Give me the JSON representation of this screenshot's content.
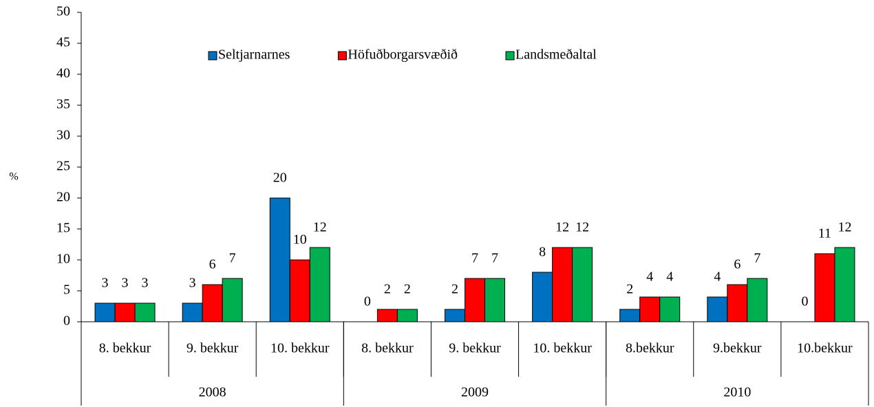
{
  "chart_data": {
    "type": "bar",
    "y_label": "%",
    "categories": [
      "8. bekkur",
      "9. bekkur",
      "10. bekkur",
      "8. bekkur",
      "9. bekkur",
      "10. bekkur",
      "8.bekkur",
      "9.bekkur",
      "10.bekkur"
    ],
    "category_groups": [
      "2008",
      "2009",
      "2010"
    ],
    "series": [
      {
        "name": "Seltjarnarnes",
        "color": "#0070c0",
        "values": [
          3,
          3,
          20,
          0,
          2,
          8,
          2,
          4,
          0
        ]
      },
      {
        "name": "Höfuðborgarsvæðið",
        "color": "#ff0000",
        "values": [
          3,
          6,
          10,
          2,
          7,
          12,
          4,
          6,
          11
        ]
      },
      {
        "name": "Landsmeðaltal",
        "color": "#00b050",
        "values": [
          3,
          7,
          12,
          2,
          7,
          12,
          4,
          7,
          12
        ]
      }
    ],
    "ylim": [
      0,
      50
    ],
    "yticks": [
      0,
      5,
      10,
      15,
      20,
      25,
      30,
      35,
      40,
      45,
      50
    ],
    "legend": "top",
    "grid": false
  }
}
